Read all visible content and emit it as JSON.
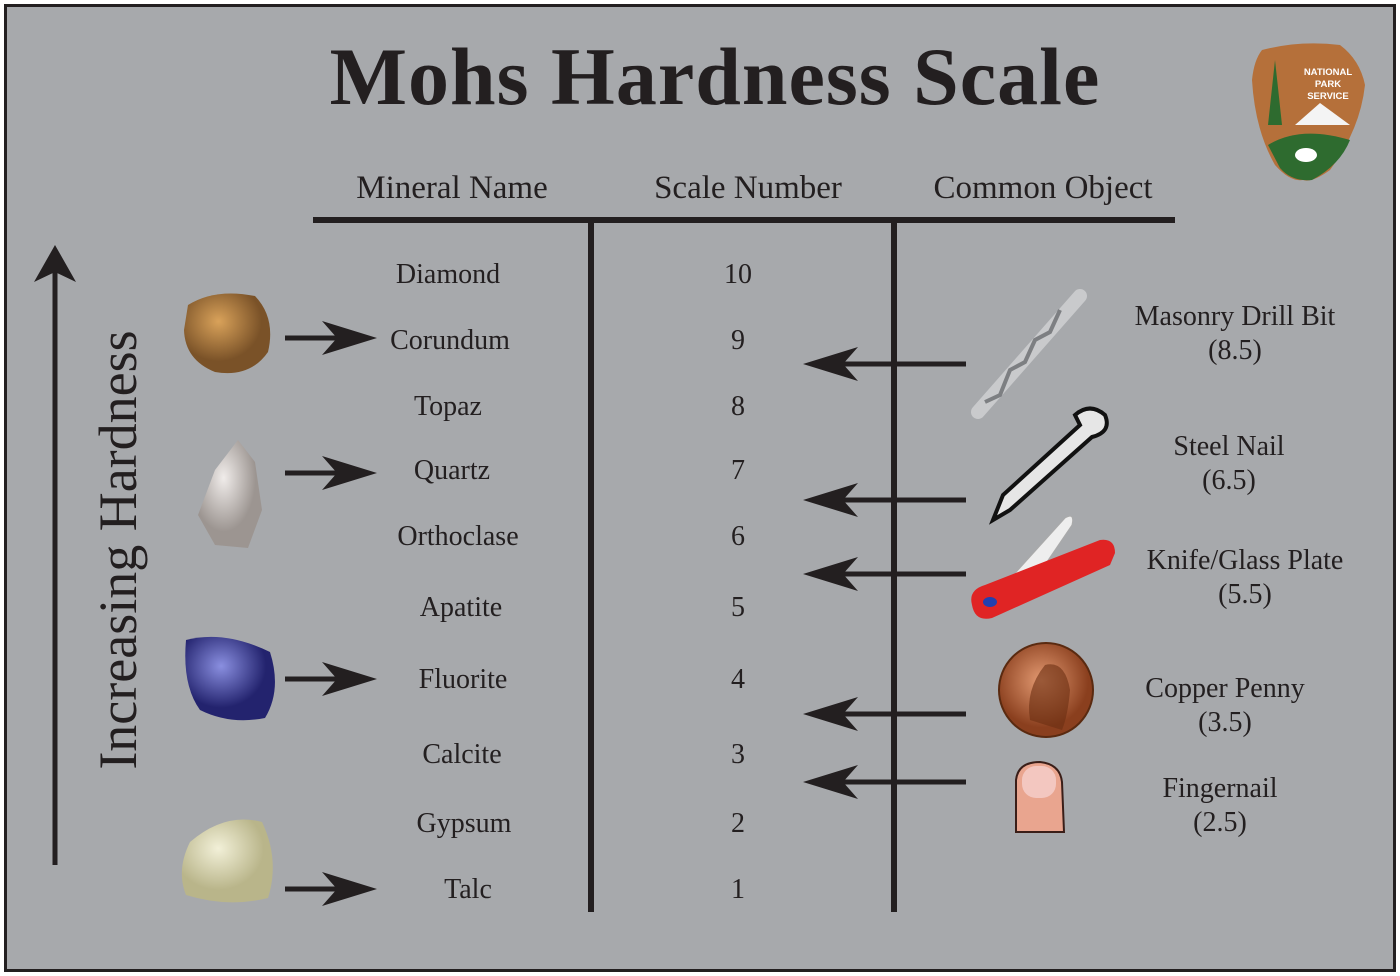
{
  "title": "Mohs Hardness Scale",
  "logo": {
    "text": "NATIONAL PARK SERVICE",
    "colors": {
      "brown": "#b5703a",
      "green": "#2e6b2f"
    }
  },
  "axis_label": "Increasing Hardness",
  "headers": {
    "mineral": "Mineral Name",
    "scale": "Scale Number",
    "object": "Common Object"
  },
  "minerals": [
    {
      "name": "Diamond",
      "scale": "10"
    },
    {
      "name": "Corundum",
      "scale": "9"
    },
    {
      "name": "Topaz",
      "scale": "8"
    },
    {
      "name": "Quartz",
      "scale": "7"
    },
    {
      "name": "Orthoclase",
      "scale": "6"
    },
    {
      "name": "Apatite",
      "scale": "5"
    },
    {
      "name": "Fluorite",
      "scale": "4"
    },
    {
      "name": "Calcite",
      "scale": "3"
    },
    {
      "name": "Gypsum",
      "scale": "2"
    },
    {
      "name": "Talc",
      "scale": "1"
    }
  ],
  "objects": [
    {
      "name": "Masonry Drill Bit",
      "hardness": "(8.5)",
      "icon": "drill-bit-icon"
    },
    {
      "name": "Steel Nail",
      "hardness": "(6.5)",
      "icon": "nail-icon"
    },
    {
      "name": "Knife/Glass Plate",
      "hardness": "(5.5)",
      "icon": "pocket-knife-icon"
    },
    {
      "name": "Copper Penny",
      "hardness": "(3.5)",
      "icon": "penny-icon"
    },
    {
      "name": "Fingernail",
      "hardness": "(2.5)",
      "icon": "fingernail-icon"
    }
  ],
  "colors": {
    "background": "#a7a9ac",
    "ink": "#231f20"
  }
}
